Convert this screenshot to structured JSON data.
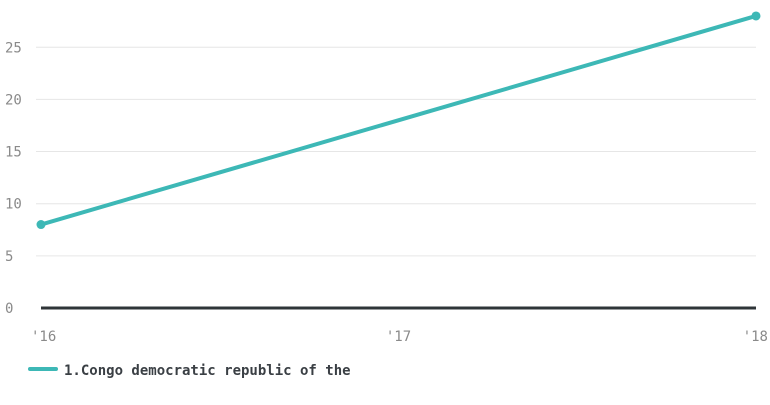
{
  "chart_data": {
    "type": "line",
    "x": [
      "'16",
      "'17",
      "'18"
    ],
    "series": [
      {
        "name": "1.Congo democratic republic of the",
        "x": [
          "'16",
          "'18"
        ],
        "values": [
          8,
          28
        ],
        "color": "#3db8b6"
      }
    ],
    "yticks": [
      0,
      5,
      10,
      15,
      20,
      25
    ],
    "ylim": [
      0,
      29
    ],
    "grid": true,
    "legend_position": "bottom-left",
    "title": "",
    "xlabel": "",
    "ylabel": ""
  },
  "colors": {
    "series": "#3db8b6",
    "gridline": "#e6e6e6",
    "baseline": "#2f3538",
    "tick_text": "#8a8a8a"
  }
}
